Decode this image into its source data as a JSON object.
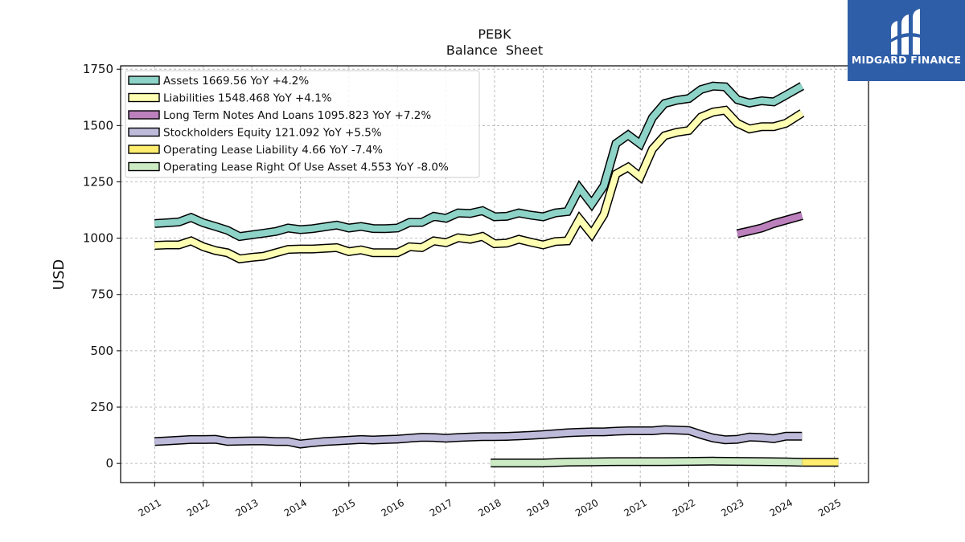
{
  "brand": {
    "name": "MIDGARD FINANCE",
    "background": "#2f5ea8"
  },
  "chart_data": {
    "type": "line",
    "title": "PEBK",
    "subtitle": "Balance  Sheet",
    "xlabel": "",
    "ylabel": "USD",
    "xlim": [
      2010.3,
      2025.7
    ],
    "ylim": [
      -85,
      1765
    ],
    "yticks": [
      0,
      250,
      500,
      750,
      1000,
      1250,
      1500,
      1750
    ],
    "xticks": [
      "2011",
      "2012",
      "2013",
      "2014",
      "2015",
      "2016",
      "2017",
      "2018",
      "2019",
      "2020",
      "2021",
      "2022",
      "2023",
      "2024",
      "2025"
    ],
    "grid": true,
    "legend_position": "top-left",
    "series": [
      {
        "name": "Assets  1669.56 YoY +4.2%",
        "color": "#8dd3c7",
        "x": [
          2011.0,
          2011.25,
          2011.5,
          2011.75,
          2012.0,
          2012.25,
          2012.5,
          2012.75,
          2013.0,
          2013.25,
          2013.5,
          2013.75,
          2014.0,
          2014.25,
          2014.5,
          2014.75,
          2015.0,
          2015.25,
          2015.5,
          2015.75,
          2016.0,
          2016.25,
          2016.5,
          2016.75,
          2017.0,
          2017.25,
          2017.5,
          2017.75,
          2018.0,
          2018.25,
          2018.5,
          2018.75,
          2019.0,
          2019.25,
          2019.5,
          2019.75,
          2020.0,
          2020.25,
          2020.5,
          2020.75,
          2021.0,
          2021.25,
          2021.5,
          2021.75,
          2022.0,
          2022.25,
          2022.5,
          2022.75,
          2023.0,
          2023.25,
          2023.5,
          2023.75,
          2024.0,
          2024.33
        ],
        "y": [
          1065,
          1068,
          1072,
          1092,
          1068,
          1052,
          1035,
          1007,
          1015,
          1022,
          1030,
          1045,
          1038,
          1042,
          1050,
          1058,
          1045,
          1052,
          1043,
          1042,
          1045,
          1070,
          1070,
          1097,
          1088,
          1112,
          1110,
          1122,
          1095,
          1097,
          1112,
          1102,
          1095,
          1112,
          1118,
          1222,
          1152,
          1232,
          1420,
          1458,
          1418,
          1535,
          1598,
          1612,
          1620,
          1660,
          1675,
          1672,
          1615,
          1600,
          1610,
          1605,
          1635,
          1675
        ]
      },
      {
        "name": "Liabilities  1548.468 YoY +4.1%",
        "color": "#ffffb3",
        "x": [
          2011.0,
          2011.25,
          2011.5,
          2011.75,
          2012.0,
          2012.25,
          2012.5,
          2012.75,
          2013.0,
          2013.25,
          2013.5,
          2013.75,
          2014.0,
          2014.25,
          2014.5,
          2014.75,
          2015.0,
          2015.25,
          2015.5,
          2015.75,
          2016.0,
          2016.25,
          2016.5,
          2016.75,
          2017.0,
          2017.25,
          2017.5,
          2017.75,
          2018.0,
          2018.25,
          2018.5,
          2018.75,
          2019.0,
          2019.25,
          2019.5,
          2019.75,
          2020.0,
          2020.25,
          2020.5,
          2020.75,
          2021.0,
          2021.25,
          2021.5,
          2021.75,
          2022.0,
          2022.25,
          2022.5,
          2022.75,
          2023.0,
          2023.25,
          2023.5,
          2023.75,
          2024.0,
          2024.33
        ],
        "y": [
          968,
          970,
          970,
          988,
          962,
          945,
          935,
          908,
          915,
          920,
          935,
          950,
          952,
          952,
          955,
          958,
          940,
          948,
          935,
          935,
          935,
          962,
          958,
          988,
          980,
          1002,
          995,
          1008,
          975,
          978,
          995,
          982,
          970,
          985,
          988,
          1085,
          1018,
          1105,
          1285,
          1315,
          1272,
          1395,
          1455,
          1470,
          1478,
          1538,
          1560,
          1568,
          1510,
          1485,
          1495,
          1495,
          1510,
          1555
        ]
      },
      {
        "name": "Long Term Notes And Loans  1095.823 YoY +7.2%",
        "color": "#bc80bd",
        "x": [
          2023.0,
          2023.25,
          2023.5,
          2023.75,
          2024.0,
          2024.33
        ],
        "y": [
          1020,
          1032,
          1045,
          1065,
          1080,
          1100
        ]
      },
      {
        "name": "Stockholders Equity  121.092 YoY +5.5%",
        "color": "#bebada",
        "x": [
          2011.0,
          2011.25,
          2011.5,
          2011.75,
          2012.0,
          2012.25,
          2012.5,
          2012.75,
          2013.0,
          2013.25,
          2013.5,
          2013.75,
          2014.0,
          2014.25,
          2014.5,
          2014.75,
          2015.0,
          2015.25,
          2015.5,
          2015.75,
          2016.0,
          2016.25,
          2016.5,
          2016.75,
          2017.0,
          2017.25,
          2017.5,
          2017.75,
          2018.0,
          2018.25,
          2018.5,
          2018.75,
          2019.0,
          2019.25,
          2019.5,
          2019.75,
          2020.0,
          2020.25,
          2020.5,
          2020.75,
          2021.0,
          2021.25,
          2021.5,
          2021.75,
          2022.0,
          2022.25,
          2022.5,
          2022.75,
          2023.0,
          2023.25,
          2023.5,
          2023.75,
          2024.0,
          2024.33
        ],
        "y": [
          97,
          100,
          103,
          106,
          106,
          107,
          98,
          99,
          100,
          100,
          97,
          97,
          86,
          92,
          97,
          100,
          103,
          106,
          104,
          106,
          108,
          112,
          116,
          115,
          112,
          115,
          117,
          119,
          119,
          120,
          122,
          125,
          128,
          132,
          136,
          138,
          140,
          140,
          143,
          145,
          145,
          145,
          150,
          148,
          146,
          128,
          113,
          105,
          107,
          117,
          115,
          110,
          121,
          121
        ]
      },
      {
        "name": "Operating Lease Liability  4.66 YoY -7.4%",
        "color": "#ffed6f",
        "x": [
          2024.33,
          2025.08
        ],
        "y": [
          5,
          5
        ]
      },
      {
        "name": "Operating Lease Right Of Use Asset  4.553 YoY -8.0%",
        "color": "#ccebc5",
        "x": [
          2017.92,
          2018.5,
          2019.0,
          2019.5,
          2020.0,
          2020.5,
          2021.0,
          2021.5,
          2022.0,
          2022.5,
          2023.0,
          2023.5,
          2024.0,
          2024.33
        ],
        "y": [
          2,
          2,
          2,
          6,
          7,
          8,
          8,
          8,
          9,
          10,
          9,
          8,
          7,
          5
        ]
      }
    ]
  }
}
